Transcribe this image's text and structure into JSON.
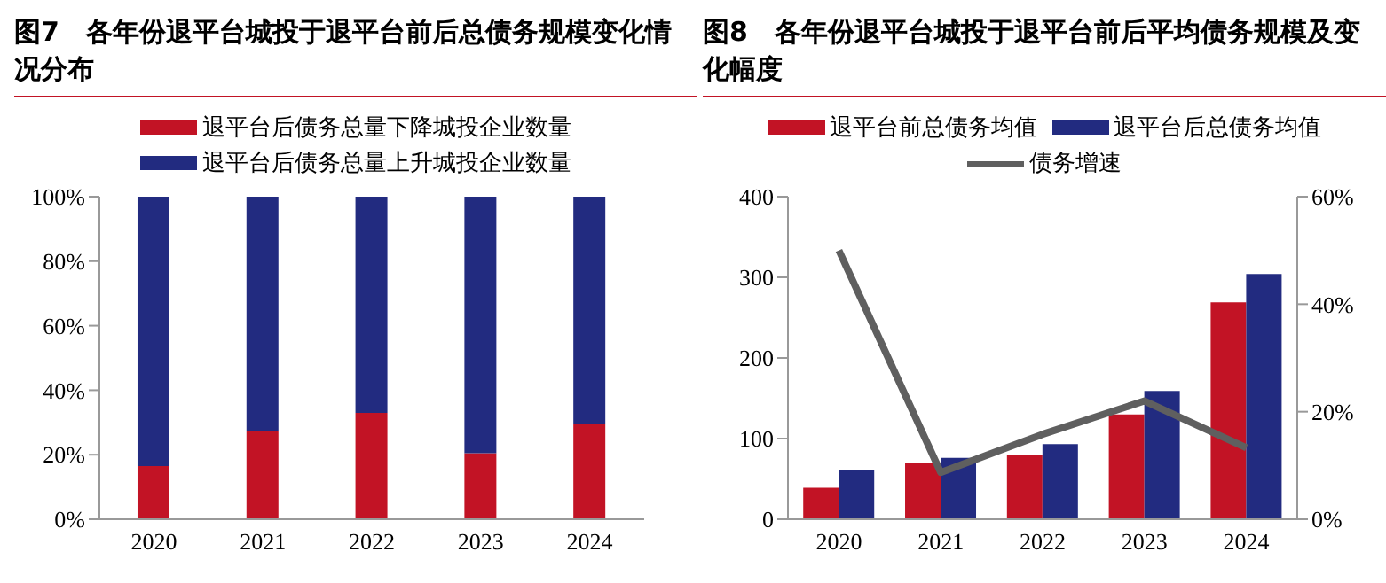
{
  "chart_data": [
    {
      "type": "bar",
      "title": "图7　各年份退平台城投于退平台前后总债务规模变化情况分布",
      "categories": [
        "2020",
        "2021",
        "2022",
        "2023",
        "2024"
      ],
      "stacked": true,
      "legend": "top",
      "grid": false,
      "series": [
        {
          "name": "退平台后债务总量下降城投企业数量",
          "color": "#c21325",
          "values": [
            16.5,
            27.5,
            33,
            20.5,
            29.5
          ]
        },
        {
          "name": "退平台后债务总量上升城投企业数量",
          "color": "#222b80",
          "values": [
            83.5,
            72.5,
            67,
            79.5,
            70.5
          ]
        }
      ],
      "ylim": [
        0,
        100
      ],
      "yticks": [
        {
          "value": 0,
          "label": "0%"
        },
        {
          "value": 20,
          "label": "20%"
        },
        {
          "value": 40,
          "label": "40%"
        },
        {
          "value": 60,
          "label": "60%"
        },
        {
          "value": 80,
          "label": "80%"
        },
        {
          "value": 100,
          "label": "100%"
        }
      ]
    },
    {
      "type": "bar",
      "title": "图8　各年份退平台城投于退平台前后平均债务规模及变化幅度",
      "categories": [
        "2020",
        "2021",
        "2022",
        "2023",
        "2024"
      ],
      "legend": "top",
      "grid": false,
      "series": [
        {
          "name": "退平台前总债务均值",
          "color": "#c21325",
          "values": [
            39,
            70,
            80,
            130,
            269
          ]
        },
        {
          "name": "退平台后总债务均值",
          "color": "#222b80",
          "values": [
            61,
            76,
            93,
            159,
            304
          ]
        },
        {
          "name": "债务增速",
          "type": "line",
          "axis": "y2",
          "color": "#5f5f5f",
          "values": [
            50,
            8.7,
            15.8,
            22,
            13.3
          ]
        }
      ],
      "ylim": [
        0,
        400
      ],
      "yticks": [
        0,
        100,
        200,
        300,
        400
      ],
      "y2lim": [
        0,
        60
      ],
      "y2ticks": [
        {
          "value": 0,
          "label": "0%"
        },
        {
          "value": 20,
          "label": "20%"
        },
        {
          "value": 40,
          "label": "40%"
        },
        {
          "value": 60,
          "label": "60%"
        }
      ]
    }
  ]
}
